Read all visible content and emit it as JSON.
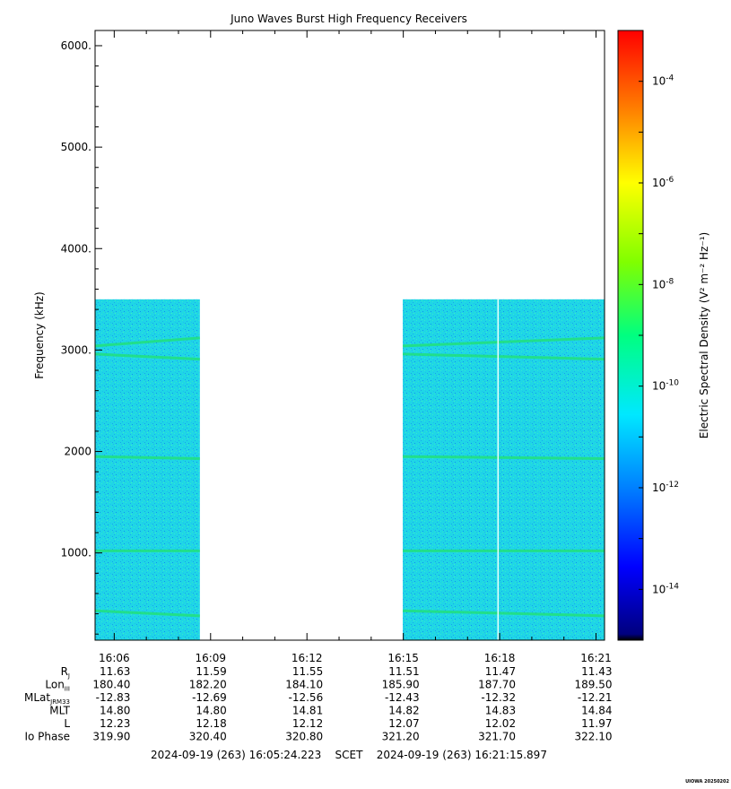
{
  "chart_data": {
    "type": "heatmap",
    "title": "Juno Waves Burst High Frequency Receivers",
    "ylabel": "Frequency (kHz)",
    "ylim": [
      140,
      6150
    ],
    "y_ticks": [
      1000,
      2000,
      3000,
      4000,
      5000,
      6000
    ],
    "y_tick_labels": [
      "1000.",
      "2000",
      "3000.",
      "4000.",
      "5000.",
      "6000."
    ],
    "xlim": [
      "16:05:24.223",
      "16:21:15.897"
    ],
    "x_ticks": [
      "16:06",
      "16:09",
      "16:12",
      "16:15",
      "16:18",
      "16:21"
    ],
    "x_tick_minutes": [
      6,
      9,
      12,
      15,
      18,
      21
    ],
    "data_segments": [
      {
        "start": "16:05:24",
        "end": "16:08:40",
        "fmin": 140,
        "fmax": 3500
      },
      {
        "start": "16:14:59",
        "end": "16:21:16",
        "fmin": 140,
        "fmax": 3500
      }
    ],
    "data_gap": {
      "start": "16:08:40",
      "end": "16:14:59"
    },
    "emission_bands_khz": [
      {
        "start_khz": 3040,
        "end_khz": 3120,
        "name": ""
      },
      {
        "start_khz": 2960,
        "end_khz": 2910,
        "name": ""
      },
      {
        "start_khz": 1950,
        "end_khz": 1930,
        "name": ""
      },
      {
        "start_khz": 1020,
        "end_khz": 1020,
        "name": ""
      },
      {
        "start_khz": 430,
        "end_khz": 380,
        "name": ""
      }
    ],
    "colorbar": {
      "label": "Electric Spectral Density (V² m⁻² Hz⁻¹)",
      "log_min": -15,
      "log_max": -3,
      "tick_exponents": [
        -4,
        -6,
        -8,
        -10,
        -12,
        -14
      ],
      "tick_base": "10"
    },
    "ephemeris": {
      "row_labels": [
        "R",
        "Lon",
        "MLat",
        "MLT",
        "L",
        "Io Phase"
      ],
      "row_label_subscripts": [
        "J",
        "III",
        "JRM33",
        "",
        "",
        ""
      ],
      "rows": [
        [
          "11.63",
          "11.59",
          "11.55",
          "11.51",
          "11.47",
          "11.43"
        ],
        [
          "180.40",
          "182.20",
          "184.10",
          "185.90",
          "187.70",
          "189.50"
        ],
        [
          "-12.83",
          "-12.69",
          "-12.56",
          "-12.43",
          "-12.32",
          "-12.21"
        ],
        [
          "14.80",
          "14.80",
          "14.81",
          "14.82",
          "14.83",
          "14.84"
        ],
        [
          "12.23",
          "12.18",
          "12.12",
          "12.07",
          "12.02",
          "11.97"
        ],
        [
          "319.90",
          "320.40",
          "320.80",
          "321.20",
          "321.70",
          "322.10"
        ]
      ]
    },
    "time_range_text": "2024-09-19 (263) 16:05:24.223    SCET    2024-09-19 (263) 16:21:15.897",
    "footer_text": "UIOWA 20250202",
    "colors": {
      "background_level": "#1fd6e6",
      "band_color": "#22e07a",
      "stripe_line": "#e8ffff"
    }
  }
}
